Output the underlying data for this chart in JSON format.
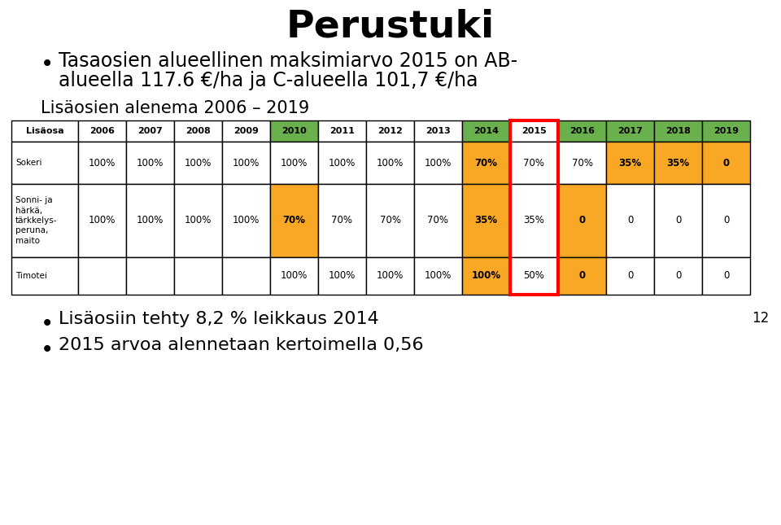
{
  "title": "Perustuki",
  "bullet1_line1": "Tasaosien alueellinen maksimiarvo 2015 on AB-",
  "bullet1_line2": "alueella 117.6 €/ha ja C-alueella 101,7 €/ha",
  "subtitle": "Lisäosien alenema 2006 – 2019",
  "bullet2": "Lisäosiin tehty 8,2 % leikkaus 2014",
  "bullet3": "2015 arvoa alennetaan kertoimella 0,56",
  "slide_number": "12",
  "col_headers": [
    "Lisäosa",
    "2006",
    "2007",
    "2008",
    "2009",
    "2010",
    "2011",
    "2012",
    "2013",
    "2014",
    "2015",
    "2016",
    "2017",
    "2018",
    "2019"
  ],
  "header_green_cols": [
    "2010",
    "2014",
    "2016",
    "2017",
    "2018",
    "2019"
  ],
  "sokeri_vals": [
    "100%",
    "100%",
    "100%",
    "100%",
    "100%",
    "100%",
    "100%",
    "100%",
    "70%",
    "70%",
    "70%",
    "35%",
    "35%",
    "0"
  ],
  "sokeri_bg": [
    "w",
    "w",
    "w",
    "w",
    "w",
    "w",
    "w",
    "w",
    "o",
    "w",
    "w",
    "o",
    "o",
    "o"
  ],
  "sonni_label": "Sonni- ja\nhärkä,\ntärkkelys-\nperuna,\nmaito",
  "sonni_vals": [
    "100%",
    "100%",
    "100%",
    "100%",
    "70%",
    "70%",
    "70%",
    "70%",
    "35%",
    "35%",
    "0",
    "0",
    "0",
    "0"
  ],
  "sonni_bg": [
    "w",
    "w",
    "w",
    "w",
    "o",
    "w",
    "w",
    "w",
    "o",
    "w",
    "o",
    "w",
    "w",
    "w"
  ],
  "timotei_vals": [
    "",
    "",
    "",
    "",
    "100%",
    "100%",
    "100%",
    "100%",
    "100%",
    "50%",
    "0",
    "0",
    "0",
    "0"
  ],
  "timotei_bg": [
    "w",
    "w",
    "w",
    "w",
    "w",
    "w",
    "w",
    "w",
    "o",
    "w",
    "o",
    "w",
    "w",
    "w"
  ],
  "color_green": "#6ab04c",
  "color_orange": "#f9a825",
  "color_white": "#ffffff",
  "color_black": "#000000",
  "background": "#ffffff"
}
